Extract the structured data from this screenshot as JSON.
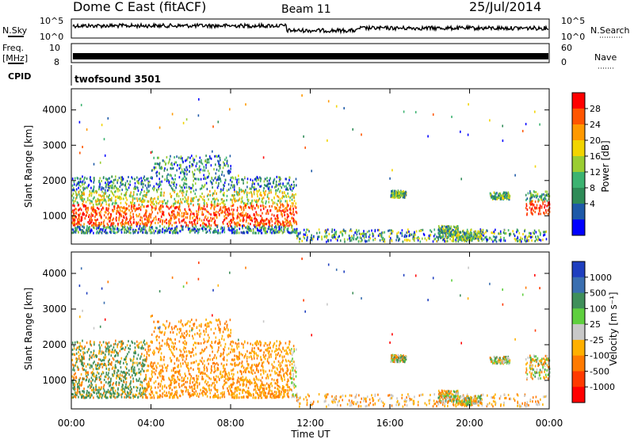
{
  "header": {
    "radar": "Dome C East (fitACF)",
    "beam": "Beam 11",
    "date": "25/Jul/2014"
  },
  "strips": {
    "nsky_label": "N.Sky",
    "nsearch_label": "N.Search",
    "nsky_ticks": [
      "10^5",
      "10^0"
    ],
    "nsearch_ticks": [
      "10^5",
      "10^0"
    ],
    "freq_label": "Freq.",
    "freq_unit": "[MHz]",
    "freq_ticks": [
      "10",
      "8"
    ],
    "nave_label": "Nave",
    "nave_ticks": [
      "60",
      "0"
    ],
    "cpid_label": "CPID",
    "cpid_value": "twofsound 3501"
  },
  "colorbars": {
    "power": {
      "label": "Power [dB]",
      "ticks": [
        "28",
        "24",
        "20",
        "16",
        "12",
        "8",
        "4"
      ],
      "colors": [
        "#ff0000",
        "#ff5500",
        "#ff9900",
        "#f2d400",
        "#9acd32",
        "#3cb371",
        "#2e8b57",
        "#1e5aa8",
        "#0000ff"
      ]
    },
    "velocity": {
      "label": "Velocity [m s⁻¹]",
      "ticks": [
        "1000",
        "500",
        "100",
        "25",
        "-25",
        "-100",
        "-500",
        "-1000"
      ],
      "colors": [
        "#1f3fbf",
        "#3a6fb0",
        "#3f8f5a",
        "#5fcf3f",
        "#c8c8c8",
        "#ffb000",
        "#ff7a00",
        "#ff3a00",
        "#ff0000"
      ]
    }
  },
  "chart_data": [
    {
      "type": "heatmap",
      "name": "power",
      "ylabel": "Slant Range [km]",
      "ylim": [
        200,
        4600
      ],
      "yticks": [
        "4000",
        "3000",
        "2000",
        "1000"
      ],
      "xlim_hours": [
        0,
        24
      ],
      "xticks": [
        "00:00",
        "04:00",
        "08:00",
        "12:00",
        "16:00",
        "20:00",
        "00:00"
      ],
      "xlabel": "Time UT",
      "colorbar_range_db": [
        0,
        32
      ]
    },
    {
      "type": "heatmap",
      "name": "velocity",
      "ylabel": "Slant Range [km]",
      "ylim": [
        200,
        4600
      ],
      "yticks": [
        "4000",
        "3000",
        "2000",
        "1000"
      ],
      "xlim_hours": [
        0,
        24
      ],
      "xticks": [
        "00:00",
        "04:00",
        "08:00",
        "12:00",
        "16:00",
        "20:00",
        "00:00"
      ],
      "xlabel": "Time UT",
      "colorbar_range_ms": [
        -1000,
        1000
      ]
    }
  ]
}
